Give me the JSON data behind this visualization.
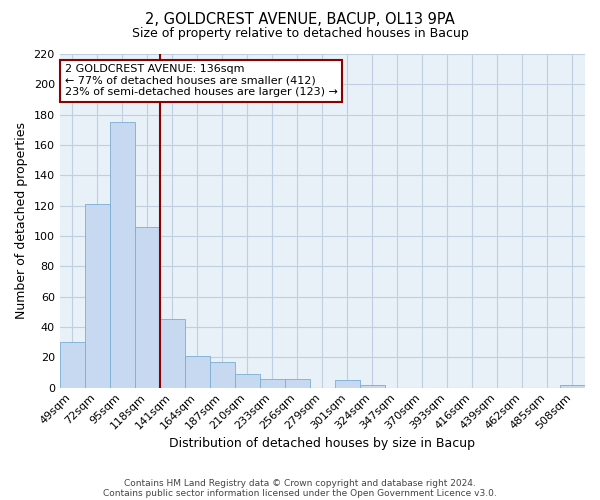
{
  "title": "2, GOLDCREST AVENUE, BACUP, OL13 9PA",
  "subtitle": "Size of property relative to detached houses in Bacup",
  "xlabel": "Distribution of detached houses by size in Bacup",
  "ylabel": "Number of detached properties",
  "bin_labels": [
    "49sqm",
    "72sqm",
    "95sqm",
    "118sqm",
    "141sqm",
    "164sqm",
    "187sqm",
    "210sqm",
    "233sqm",
    "256sqm",
    "279sqm",
    "301sqm",
    "324sqm",
    "347sqm",
    "370sqm",
    "393sqm",
    "416sqm",
    "439sqm",
    "462sqm",
    "485sqm",
    "508sqm"
  ],
  "bar_heights": [
    30,
    121,
    175,
    106,
    45,
    21,
    17,
    9,
    6,
    6,
    0,
    5,
    2,
    0,
    0,
    0,
    0,
    0,
    0,
    0,
    2
  ],
  "bar_color": "#c6d9f0",
  "bar_edgecolor": "#7aadd4",
  "vline_color": "#8b0000",
  "annotation_title": "2 GOLDCREST AVENUE: 136sqm",
  "annotation_line1": "← 77% of detached houses are smaller (412)",
  "annotation_line2": "23% of semi-detached houses are larger (123) →",
  "annotation_box_edgecolor": "#8b0000",
  "ylim": [
    0,
    220
  ],
  "yticks": [
    0,
    20,
    40,
    60,
    80,
    100,
    120,
    140,
    160,
    180,
    200,
    220
  ],
  "plot_bg_color": "#e8f0f8",
  "grid_color": "#c0d0e0",
  "footer1": "Contains HM Land Registry data © Crown copyright and database right 2024.",
  "footer2": "Contains public sector information licensed under the Open Government Licence v3.0."
}
